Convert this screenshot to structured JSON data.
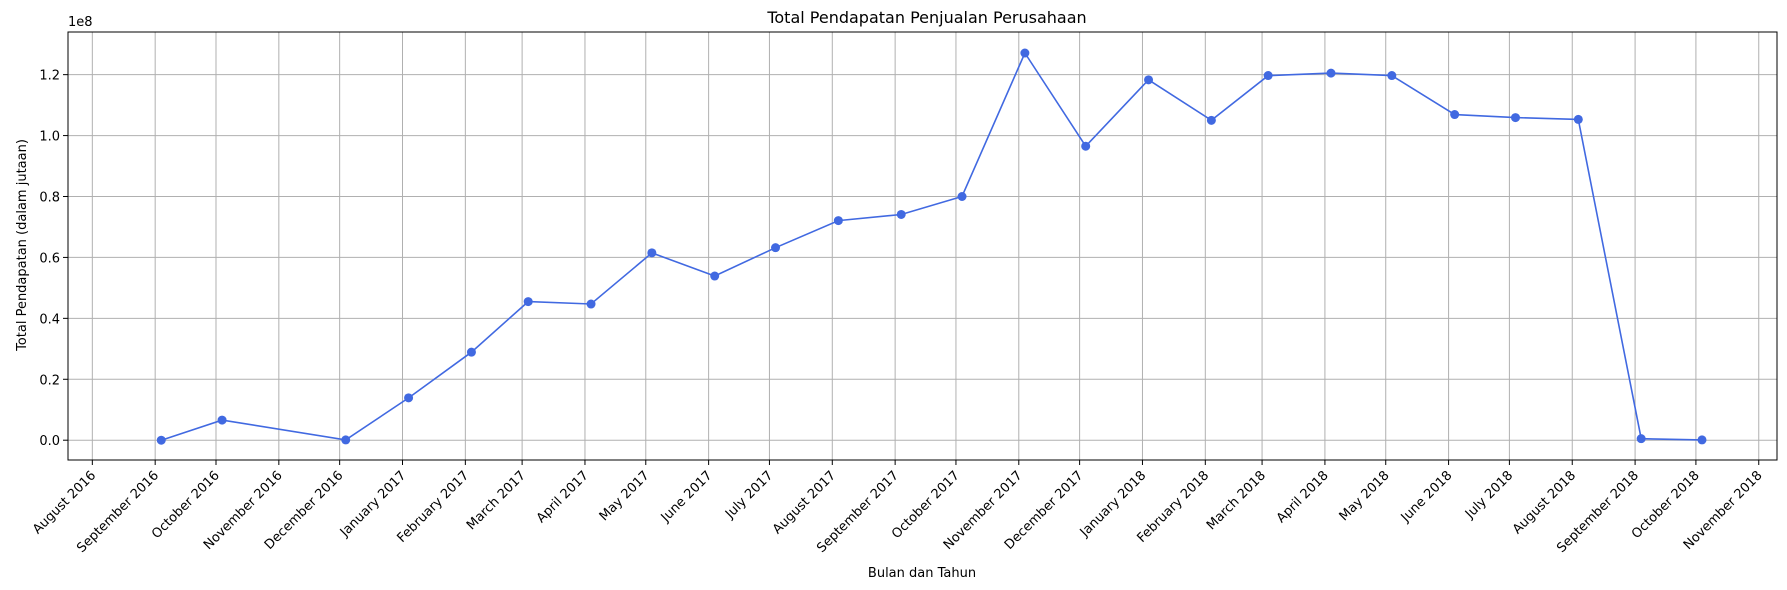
{
  "chart_data": {
    "type": "line",
    "title": "Total Pendapatan Penjualan Perusahaan",
    "xlabel": "Bulan dan Tahun",
    "ylabel": "Total Pendapatan (dalam jutaan)",
    "y_offset_label": "1e8",
    "ylim": [
      -0.065,
      1.34
    ],
    "xlim": [
      "2016-07-20",
      "2018-11-10"
    ],
    "grid": true,
    "line_color": "#4169e1",
    "x_ticks": [
      "2016-08-01",
      "2016-09-01",
      "2016-10-01",
      "2016-11-01",
      "2016-12-01",
      "2017-01-01",
      "2017-02-01",
      "2017-03-01",
      "2017-04-01",
      "2017-05-01",
      "2017-06-01",
      "2017-07-01",
      "2017-08-01",
      "2017-09-01",
      "2017-10-01",
      "2017-11-01",
      "2017-12-01",
      "2018-01-01",
      "2018-02-01",
      "2018-03-01",
      "2018-04-01",
      "2018-05-01",
      "2018-06-01",
      "2018-07-01",
      "2018-08-01",
      "2018-09-01",
      "2018-10-01",
      "2018-11-01"
    ],
    "x_tick_labels": [
      "August 2016",
      "September 2016",
      "October 2016",
      "November 2016",
      "December 2016",
      "January 2017",
      "February 2017",
      "March 2017",
      "April 2017",
      "May 2017",
      "June 2017",
      "July 2017",
      "August 2017",
      "September 2017",
      "October 2017",
      "November 2017",
      "December 2017",
      "January 2018",
      "February 2018",
      "March 2018",
      "April 2018",
      "May 2018",
      "June 2018",
      "July 2018",
      "August 2018",
      "September 2018",
      "October 2018",
      "November 2018"
    ],
    "y_ticks": [
      0.0,
      0.2,
      0.4,
      0.6,
      0.8,
      1.0,
      1.2
    ],
    "y_tick_labels": [
      "0.0",
      "0.2",
      "0.4",
      "0.6",
      "0.8",
      "1.0",
      "1.2"
    ],
    "series": [
      {
        "x": [
          "2016-09-04",
          "2016-10-04",
          "2016-12-04",
          "2017-01-04",
          "2017-02-04",
          "2017-03-04",
          "2017-04-04",
          "2017-05-04",
          "2017-06-04",
          "2017-07-04",
          "2017-08-04",
          "2017-09-04",
          "2017-10-04",
          "2017-11-04",
          "2017-12-04",
          "2018-01-04",
          "2018-02-04",
          "2018-03-04",
          "2018-04-04",
          "2018-05-04",
          "2018-06-04",
          "2018-07-04",
          "2018-08-04",
          "2018-09-04",
          "2018-10-04"
        ],
        "values": [
          0.0,
          0.066,
          0.001,
          0.139,
          0.289,
          0.455,
          0.447,
          0.615,
          0.539,
          0.632,
          0.721,
          0.741,
          0.8,
          1.271,
          0.965,
          1.183,
          1.05,
          1.197,
          1.205,
          1.197,
          1.069,
          1.059,
          1.053,
          0.005,
          0.001
        ]
      }
    ]
  }
}
